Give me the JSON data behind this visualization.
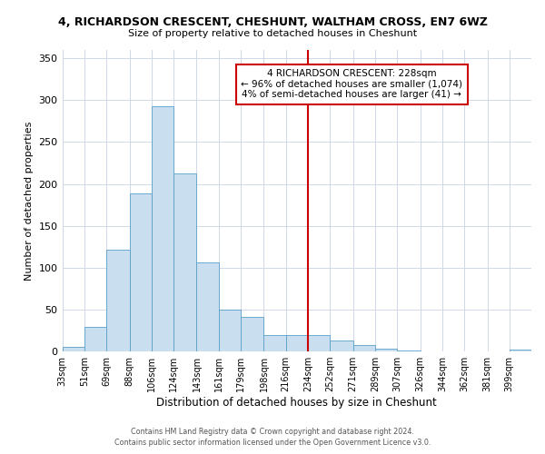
{
  "title": "4, RICHARDSON CRESCENT, CHESHUNT, WALTHAM CROSS, EN7 6WZ",
  "subtitle": "Size of property relative to detached houses in Cheshunt",
  "xlabel": "Distribution of detached houses by size in Cheshunt",
  "ylabel": "Number of detached properties",
  "bin_labels": [
    "33sqm",
    "51sqm",
    "69sqm",
    "88sqm",
    "106sqm",
    "124sqm",
    "143sqm",
    "161sqm",
    "179sqm",
    "198sqm",
    "216sqm",
    "234sqm",
    "252sqm",
    "271sqm",
    "289sqm",
    "307sqm",
    "326sqm",
    "344sqm",
    "362sqm",
    "381sqm",
    "399sqm"
  ],
  "bar_heights": [
    5,
    29,
    122,
    189,
    293,
    213,
    106,
    50,
    41,
    20,
    20,
    20,
    13,
    8,
    3,
    1,
    0,
    0,
    0,
    0,
    2
  ],
  "bar_color": "#c9dff0",
  "bar_edge_color": "#5a9ec9",
  "vline_x": 234,
  "vline_color": "#cc0000",
  "ylim": [
    0,
    360
  ],
  "yticks": [
    0,
    50,
    100,
    150,
    200,
    250,
    300,
    350
  ],
  "annotation_title": "4 RICHARDSON CRESCENT: 228sqm",
  "annotation_line1": "← 96% of detached houses are smaller (1,074)",
  "annotation_line2": "4% of semi-detached houses are larger (41) →",
  "annotation_box_color": "#ffffff",
  "annotation_border_color": "#cc0000",
  "footer_line1": "Contains HM Land Registry data © Crown copyright and database right 2024.",
  "footer_line2": "Contains public sector information licensed under the Open Government Licence v3.0.",
  "bin_edges": [
    33,
    51,
    69,
    88,
    106,
    124,
    143,
    161,
    179,
    198,
    216,
    234,
    252,
    271,
    289,
    307,
    326,
    344,
    362,
    381,
    399
  ],
  "background_color": "#ffffff",
  "grid_color": "#d0d8e8"
}
